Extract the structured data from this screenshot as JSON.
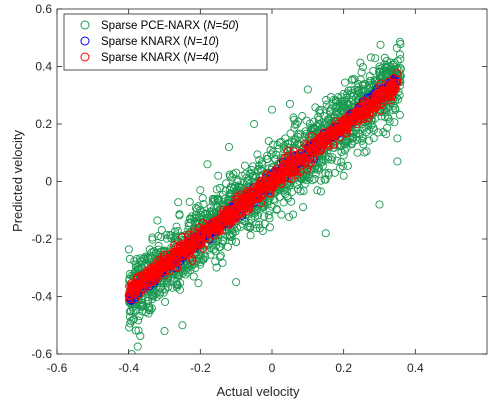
{
  "chart_data": {
    "type": "scatter",
    "xlabel": "Actual velocity",
    "ylabel": "Predicted velocity",
    "xlim": [
      -0.6,
      0.6
    ],
    "ylim": [
      -0.6,
      0.6
    ],
    "xticks": [
      -0.6,
      -0.4,
      -0.2,
      0,
      0.2,
      0.4
    ],
    "yticks": [
      -0.6,
      -0.4,
      -0.2,
      0,
      0.2,
      0.4,
      0.6
    ],
    "xtick_labels": [
      "-0.6",
      "-0.4",
      "-0.2",
      "0",
      "0.2",
      "0.4"
    ],
    "ytick_labels": [
      "-0.6",
      "-0.4",
      "-0.2",
      "0",
      "0.2",
      "0.4",
      "0.6"
    ],
    "grid": false,
    "legend_position": "top-left",
    "legend": [
      {
        "prefix": "Sparse PCE-NARX (",
        "italic": "N=50",
        "suffix": ")",
        "color": "#1a9850"
      },
      {
        "prefix": "Sparse KNARX (",
        "italic": "N=10",
        "suffix": ")",
        "color": "#0000ff"
      },
      {
        "prefix": "Sparse KNARX (",
        "italic": "N=40",
        "suffix": ")",
        "color": "#ff0000"
      }
    ],
    "series": [
      {
        "color": "#1a9850",
        "marker": "open-circle",
        "x_range": [
          -0.4,
          0.36
        ],
        "trend_slope": 1.0,
        "spread": 0.06,
        "outliers": [
          {
            "x": -0.18,
            "y": 0.06
          },
          {
            "x": -0.15,
            "y": 0.02
          },
          {
            "x": -0.12,
            "y": 0.12
          },
          {
            "x": -0.05,
            "y": 0.2
          },
          {
            "x": 0.0,
            "y": 0.25
          },
          {
            "x": 0.05,
            "y": 0.27
          },
          {
            "x": 0.1,
            "y": 0.32
          },
          {
            "x": 0.2,
            "y": 0.02
          },
          {
            "x": 0.3,
            "y": -0.08
          },
          {
            "x": 0.35,
            "y": 0.07
          },
          {
            "x": 0.35,
            "y": 0.15
          },
          {
            "x": -0.3,
            "y": -0.52
          },
          {
            "x": -0.25,
            "y": -0.5
          },
          {
            "x": -0.1,
            "y": -0.35
          },
          {
            "x": 0.15,
            "y": -0.18
          },
          {
            "x": -0.2,
            "y": -0.03
          },
          {
            "x": 0.25,
            "y": 0.38
          },
          {
            "x": 0.3,
            "y": 0.4
          }
        ]
      },
      {
        "color": "#0000ff",
        "marker": "open-circle",
        "x_range": [
          -0.4,
          0.35
        ],
        "trend_slope": 1.0,
        "spread": 0.012
      },
      {
        "color": "#ff0000",
        "marker": "open-circle",
        "x_range": [
          -0.4,
          0.35
        ],
        "trend_slope": 0.97,
        "spread": 0.018
      }
    ]
  }
}
